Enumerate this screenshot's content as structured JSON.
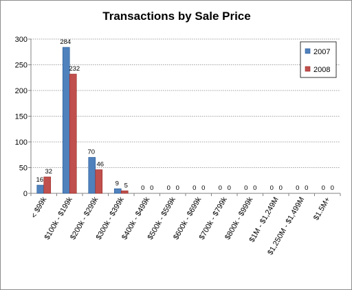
{
  "chart_data": {
    "type": "bar",
    "title": "Transactions by Sale Price",
    "xlabel": "",
    "ylabel": "",
    "categories": [
      "< $99k",
      "$100k - $199k",
      "$200k - $299k",
      "$300k - $399k",
      "$400k - $499k",
      "$500k - $599k",
      "$600k - $699k",
      "$700k - $799k",
      "$800k - $999k",
      "$1M - $1,249M",
      "$1,250M - $1,499M",
      "$1.5M+"
    ],
    "series": [
      {
        "name": "2007",
        "values": [
          16,
          284,
          70,
          9,
          0,
          0,
          0,
          0,
          0,
          0,
          0,
          0
        ],
        "color": "#4f81bd"
      },
      {
        "name": "2008",
        "values": [
          32,
          232,
          46,
          5,
          0,
          0,
          0,
          0,
          0,
          0,
          0,
          0
        ],
        "color": "#c0504d"
      }
    ],
    "ylim": [
      0,
      300
    ],
    "yticks": [
      0,
      50,
      100,
      150,
      200,
      250,
      300
    ],
    "grid": true,
    "legend_position": "right"
  }
}
